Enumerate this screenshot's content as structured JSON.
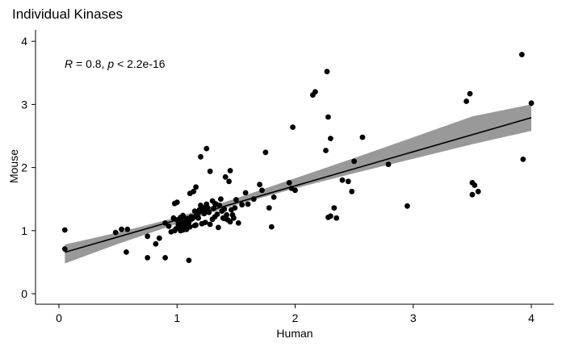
{
  "chart_data": {
    "type": "scatter",
    "title": "Individual Kinases",
    "xlabel": "Human",
    "ylabel": "Mouse",
    "xlim": [
      -0.2,
      4.2
    ],
    "ylim": [
      -0.1,
      4.15
    ],
    "x_ticks": [
      0,
      1,
      2,
      3,
      4
    ],
    "y_ticks": [
      0,
      1,
      2,
      3,
      4
    ],
    "grid": false,
    "annotation": {
      "r_label": "R",
      "r_text": " = 0.8, ",
      "p_label": "p",
      "p_text": " < 2.2e-16"
    },
    "regression": {
      "intercept": 0.63,
      "slope": 0.54,
      "x_range": [
        0.05,
        4.0
      ]
    },
    "confidence_band": [
      {
        "x": 0.05,
        "lo": 0.48,
        "hi": 0.78
      },
      {
        "x": 0.5,
        "lo": 0.79,
        "hi": 0.97
      },
      {
        "x": 1.0,
        "lo": 1.11,
        "hi": 1.21
      },
      {
        "x": 1.5,
        "lo": 1.41,
        "hi": 1.51
      },
      {
        "x": 2.0,
        "lo": 1.67,
        "hi": 1.83
      },
      {
        "x": 2.5,
        "lo": 1.91,
        "hi": 2.15
      },
      {
        "x": 3.0,
        "lo": 2.14,
        "hi": 2.48
      },
      {
        "x": 3.5,
        "lo": 2.37,
        "hi": 2.81
      },
      {
        "x": 4.0,
        "lo": 2.58,
        "hi": 3.0
      }
    ],
    "x": [
      0.05,
      0.05,
      0.48,
      0.53,
      0.58,
      0.57,
      0.75,
      0.75,
      0.82,
      0.85,
      0.9,
      0.9,
      0.93,
      0.95,
      0.97,
      0.98,
      0.99,
      1.0,
      1.01,
      1.02,
      1.03,
      1.03,
      1.04,
      1.05,
      1.05,
      1.06,
      1.07,
      1.08,
      1.08,
      1.09,
      1.1,
      1.1,
      1.11,
      1.12,
      1.13,
      1.14,
      1.15,
      1.15,
      1.16,
      1.17,
      1.18,
      1.19,
      1.2,
      1.2,
      1.21,
      1.22,
      1.23,
      1.24,
      1.25,
      1.25,
      1.26,
      1.27,
      1.28,
      1.3,
      1.3,
      1.31,
      1.32,
      1.33,
      1.35,
      1.36,
      1.37,
      1.38,
      1.39,
      1.4,
      1.41,
      1.42,
      1.43,
      1.44,
      1.45,
      1.45,
      1.46,
      1.47,
      1.48,
      1.49,
      1.5,
      1.52,
      1.55,
      1.58,
      1.6,
      1.65,
      1.7,
      1.72,
      1.75,
      1.78,
      1.8,
      1.82,
      1.95,
      1.97,
      1.98,
      2.0,
      0.98,
      1.02,
      1.05,
      1.07,
      1.1,
      1.15,
      1.12,
      1.18,
      1.22,
      1.28,
      1.34,
      1.4,
      1.03,
      1.08,
      1.13,
      1.06,
      1.0,
      1.16,
      1.24,
      1.32,
      1.05,
      1.09,
      1.11,
      2.15,
      2.17,
      2.27,
      2.28,
      2.26,
      2.3,
      2.33,
      2.35,
      2.4,
      2.45,
      2.48,
      2.5,
      2.57,
      2.28,
      2.3,
      2.79,
      2.95,
      3.45,
      3.48,
      3.5,
      3.52,
      3.5,
      3.55,
      3.92,
      3.93,
      4.0
    ],
    "y": [
      1.01,
      0.71,
      0.97,
      1.02,
      1.02,
      0.66,
      0.57,
      0.91,
      0.79,
      0.88,
      1.12,
      0.57,
      1.07,
      0.98,
      1.2,
      1.43,
      1.03,
      1.45,
      1.1,
      1.13,
      1.0,
      1.21,
      1.15,
      1.24,
      1.05,
      1.09,
      1.12,
      1.02,
      1.19,
      1.06,
      1.13,
      0.53,
      1.59,
      1.22,
      1.19,
      1.62,
      1.08,
      1.31,
      1.69,
      1.25,
      1.2,
      1.33,
      2.17,
      1.4,
      1.11,
      1.36,
      1.27,
      1.13,
      1.42,
      2.3,
      1.36,
      1.29,
      1.94,
      1.18,
      1.47,
      1.35,
      1.43,
      1.42,
      1.05,
      1.4,
      1.5,
      1.31,
      1.2,
      1.19,
      1.85,
      1.25,
      1.17,
      1.78,
      1.95,
      1.14,
      1.33,
      1.25,
      1.2,
      1.36,
      1.49,
      1.12,
      1.41,
      1.6,
      1.42,
      1.5,
      1.73,
      1.64,
      2.24,
      1.36,
      1.06,
      1.53,
      1.76,
      1.67,
      2.64,
      1.64,
      1.0,
      1.05,
      1.1,
      1.15,
      1.08,
      1.22,
      1.18,
      1.28,
      1.31,
      1.1,
      1.26,
      1.34,
      1.07,
      1.04,
      1.2,
      1.14,
      1.17,
      1.09,
      1.3,
      1.22,
      1.01,
      1.12,
      1.06,
      3.15,
      3.2,
      3.52,
      2.8,
      2.27,
      2.46,
      1.36,
      1.2,
      1.8,
      1.78,
      1.62,
      2.1,
      2.48,
      1.21,
      1.23,
      2.05,
      1.39,
      3.05,
      3.17,
      1.76,
      1.72,
      1.57,
      1.62,
      3.79,
      2.13,
      3.02
    ]
  }
}
